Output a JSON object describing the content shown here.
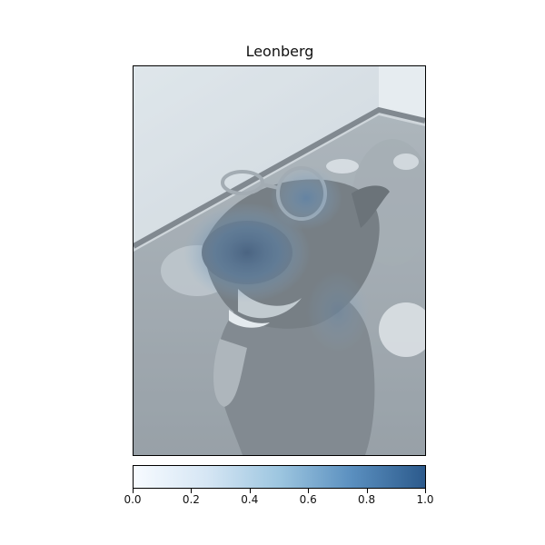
{
  "title": "Leonberg",
  "colorbar": {
    "colormap": "Blues",
    "ticks": [
      "0.0",
      "0.2",
      "0.4",
      "0.6",
      "0.8",
      "1.0"
    ],
    "min": 0.0,
    "max": 1.0
  }
}
